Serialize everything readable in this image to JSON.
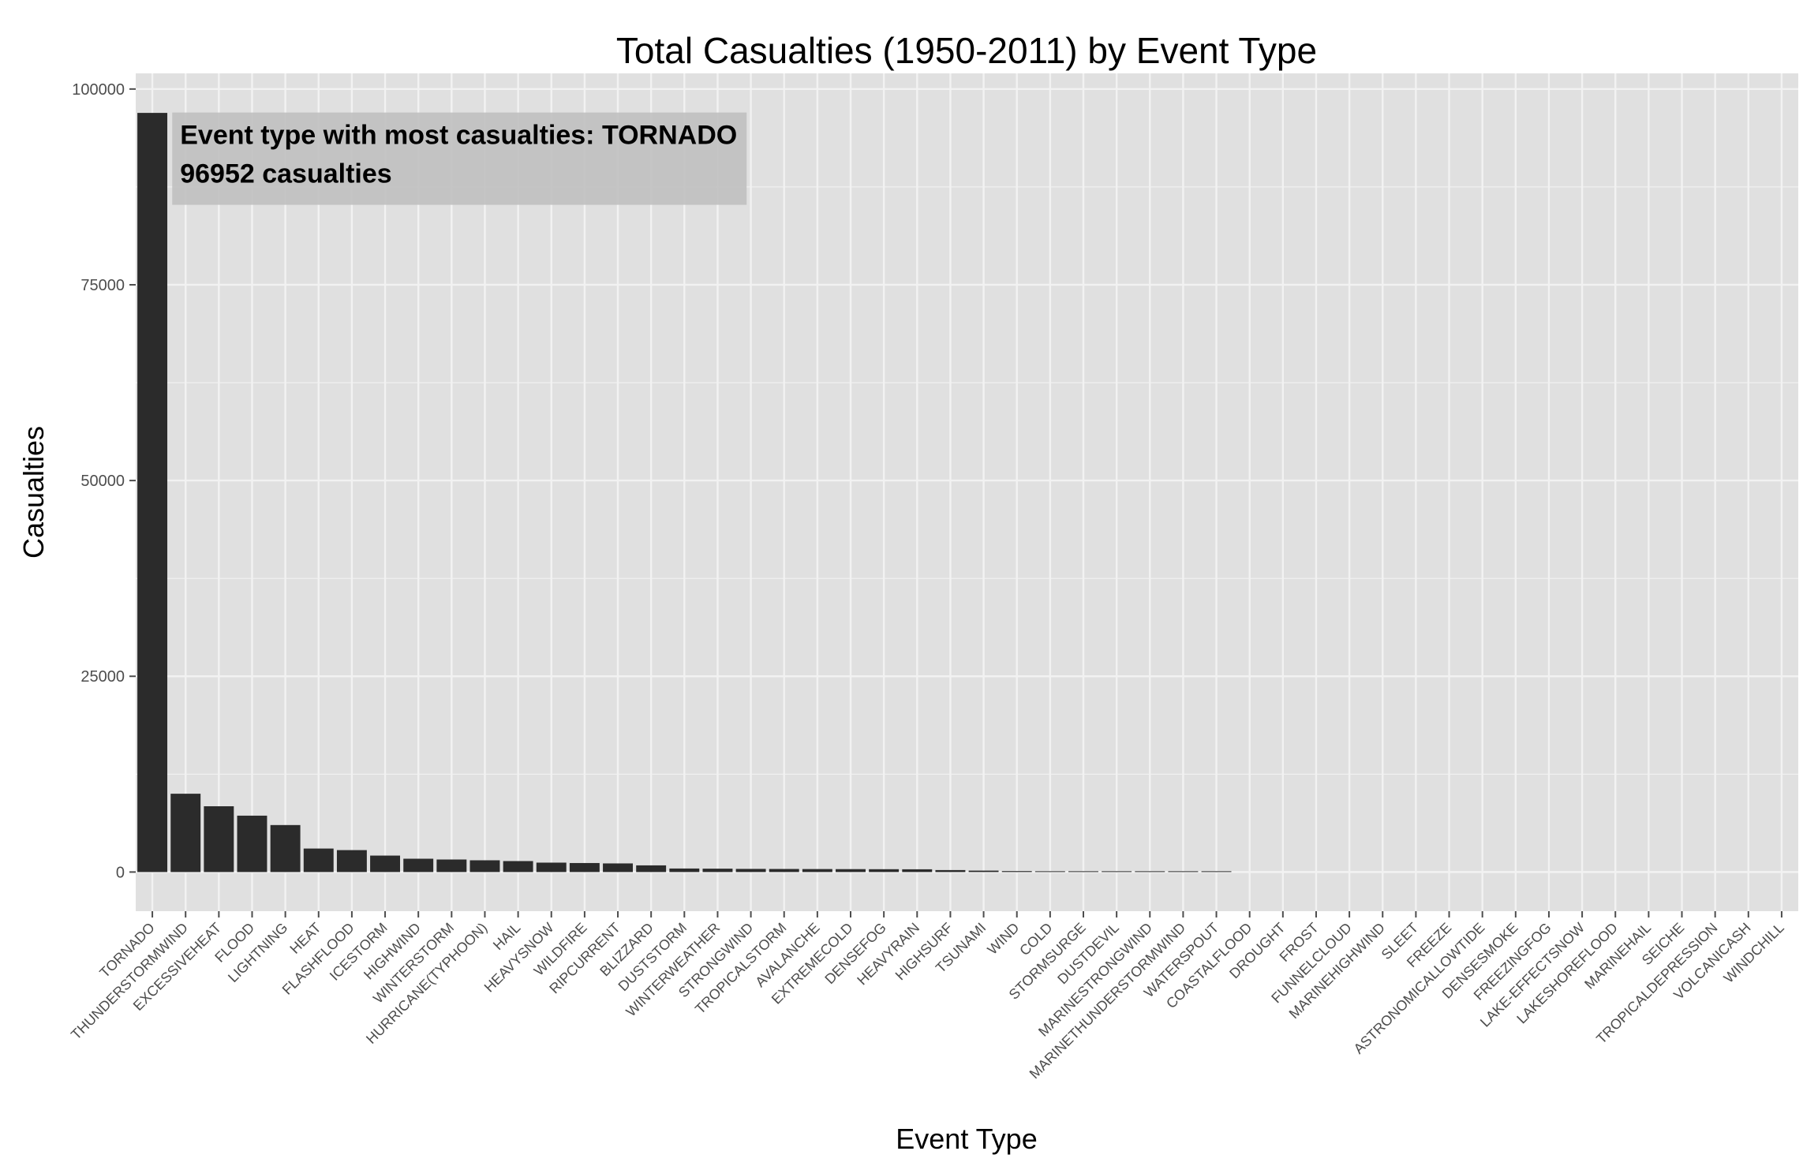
{
  "chart_data": {
    "type": "bar",
    "title": "Total Casualties (1950-2011) by Event Type",
    "xlabel": "Event Type",
    "ylabel": "Casualties",
    "ylim": [
      -5000,
      102000
    ],
    "yticks": [
      0,
      25000,
      50000,
      75000,
      100000
    ],
    "ytick_labels": [
      "0",
      "25000",
      "50000",
      "75000",
      "100000"
    ],
    "grid": true,
    "legend": "none",
    "colors": {
      "bar": "#2b2b2b",
      "panel": "#e0e0e0",
      "grid": "#f2f2f2",
      "annotation_box": "#bdbdbd"
    },
    "annotation": {
      "line1": "Event type with most casualties: TORNADO",
      "line2": "96952 casualties",
      "anchor_x_category": "THUNDERSTORMWIND",
      "anchor_y": 97000
    },
    "categories": [
      "TORNADO",
      "THUNDERSTORMWIND",
      "EXCESSIVEHEAT",
      "FLOOD",
      "LIGHTNING",
      "HEAT",
      "FLASHFLOOD",
      "ICESTORM",
      "HIGHWIND",
      "WINTERSTORM",
      "HURRICANE(TYPHOON)",
      "HAIL",
      "HEAVYSNOW",
      "WILDFIRE",
      "RIPCURRENT",
      "BLIZZARD",
      "DUSTSTORM",
      "WINTERWEATHER",
      "STRONGWIND",
      "TROPICALSTORM",
      "AVALANCHE",
      "EXTREMECOLD",
      "DENSEFOG",
      "HEAVYRAIN",
      "HIGHSURF",
      "TSUNAMI",
      "WIND",
      "COLD",
      "STORMSURGE",
      "DUSTDEVIL",
      "MARINESTRONGWIND",
      "MARINETHUNDERSTORMWIND",
      "WATERSPOUT",
      "COASTALFLOOD",
      "DROUGHT",
      "FROST",
      "FUNNELCLOUD",
      "MARINEHIGHWIND",
      "SLEET",
      "FREEZE",
      "ASTRONOMICALLOWTIDE",
      "DENSESMOKE",
      "FREEZINGFOG",
      "LAKE-EFFECTSNOW",
      "LAKESHOREFLOOD",
      "MARINEHAIL",
      "SEICHE",
      "TROPICALDEPRESSION",
      "VOLCANICASH",
      "WINDCHILL"
    ],
    "values": [
      96952,
      10000,
      8400,
      7200,
      6000,
      3000,
      2800,
      2100,
      1700,
      1600,
      1500,
      1400,
      1200,
      1150,
      1100,
      850,
      450,
      430,
      400,
      390,
      380,
      370,
      360,
      350,
      250,
      180,
      120,
      100,
      80,
      60,
      40,
      35,
      30,
      0,
      0,
      0,
      0,
      0,
      0,
      0,
      0,
      0,
      0,
      0,
      0,
      0,
      0,
      0,
      0,
      0
    ]
  }
}
